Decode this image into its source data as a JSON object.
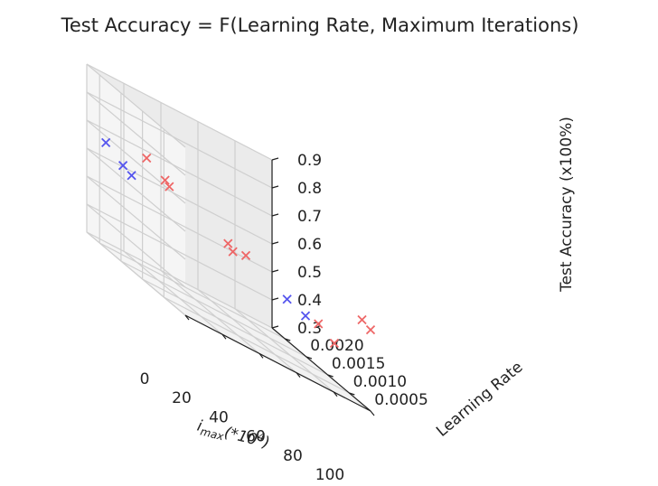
{
  "chart_data": {
    "type": "scatter",
    "title": "Test Accuracy = F(Learning Rate, Maximum Iterations)",
    "xlabel_main": "i",
    "xlabel_sub": "max",
    "xlabel_rest": "(*10",
    "xlabel_sup": "4",
    "xlabel_end": ")",
    "ylabel": "Learning Rate",
    "zlabel": "Test Accuracy (x100%)",
    "x_ticks": [
      "0",
      "20",
      "40",
      "60",
      "80",
      "100"
    ],
    "y_ticks": [
      "0.0005",
      "0.0010",
      "0.0015",
      "0.0020"
    ],
    "z_ticks": [
      "0.3",
      "0.4",
      "0.5",
      "0.6",
      "0.7",
      "0.8",
      "0.9"
    ],
    "xlim": [
      0,
      100
    ],
    "ylim": [
      0.0,
      0.0023
    ],
    "zlim": [
      0.3,
      0.9
    ],
    "grid": true,
    "marker": "x",
    "series": [
      {
        "color": "#5555ee",
        "points": [
          {
            "x": 8,
            "y": 0.0022,
            "z": 0.66
          },
          {
            "x": 8,
            "y": 0.0018,
            "z": 0.63
          },
          {
            "x": 8,
            "y": 0.0016,
            "z": 0.62
          },
          {
            "x": 85,
            "y": 0.0013,
            "z": 0.48
          },
          {
            "x": 88,
            "y": 0.001,
            "z": 0.47
          }
        ]
      },
      {
        "color": "#ee6666",
        "points": [
          {
            "x": 30,
            "y": 0.0022,
            "z": 0.68
          },
          {
            "x": 33,
            "y": 0.0019,
            "z": 0.65
          },
          {
            "x": 33,
            "y": 0.0018,
            "z": 0.64
          },
          {
            "x": 30,
            "y": 0.0003,
            "z": 0.62
          },
          {
            "x": 28,
            "y": 0.0001,
            "z": 0.61
          },
          {
            "x": 35,
            "y": 0.0001,
            "z": 0.62
          },
          {
            "x": 88,
            "y": 0.0007,
            "z": 0.48
          },
          {
            "x": 92,
            "y": 0.0005,
            "z": 0.45
          },
          {
            "x": 100,
            "y": 0.0002,
            "z": 0.6
          },
          {
            "x": 100,
            "y": 0.0,
            "z": 0.59
          }
        ]
      }
    ]
  }
}
